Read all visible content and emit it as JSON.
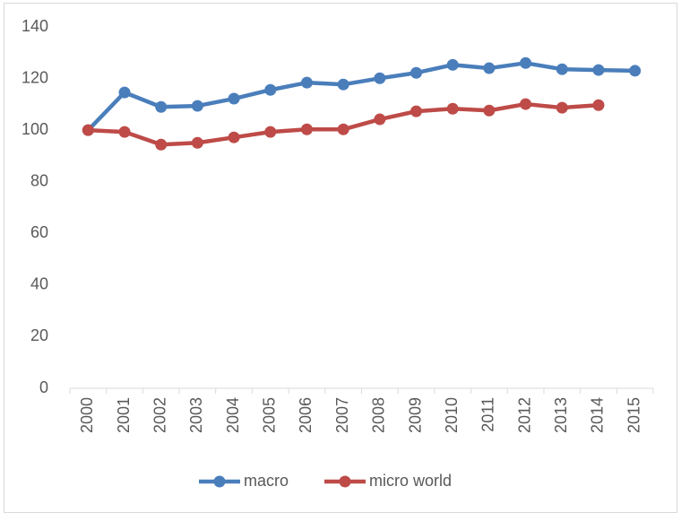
{
  "chart_data": {
    "type": "line",
    "categories": [
      "2000",
      "2001",
      "2002",
      "2003",
      "2004",
      "2005",
      "2006",
      "2007",
      "2008",
      "2009",
      "2010",
      "2011",
      "2012",
      "2013",
      "2014",
      "2015"
    ],
    "series": [
      {
        "name": "macro",
        "color": "#4a7ebb",
        "values": [
          100,
          114.6,
          109,
          109.4,
          112.2,
          115.6,
          118.4,
          117.7,
          120.1,
          122.2,
          125.3,
          124,
          126,
          123.6,
          123.3,
          123
        ]
      },
      {
        "name": "micro world",
        "color": "#be4b48",
        "values": [
          100,
          99.3,
          94.4,
          95.1,
          97.2,
          99.3,
          100.3,
          100.3,
          104.2,
          107.3,
          108.3,
          107.6,
          110.1,
          108.7,
          109.7,
          null
        ]
      }
    ],
    "ylim": [
      0,
      140
    ],
    "yticks": [
      0,
      20,
      40,
      60,
      80,
      100,
      120,
      140
    ],
    "legend": "bottom"
  }
}
